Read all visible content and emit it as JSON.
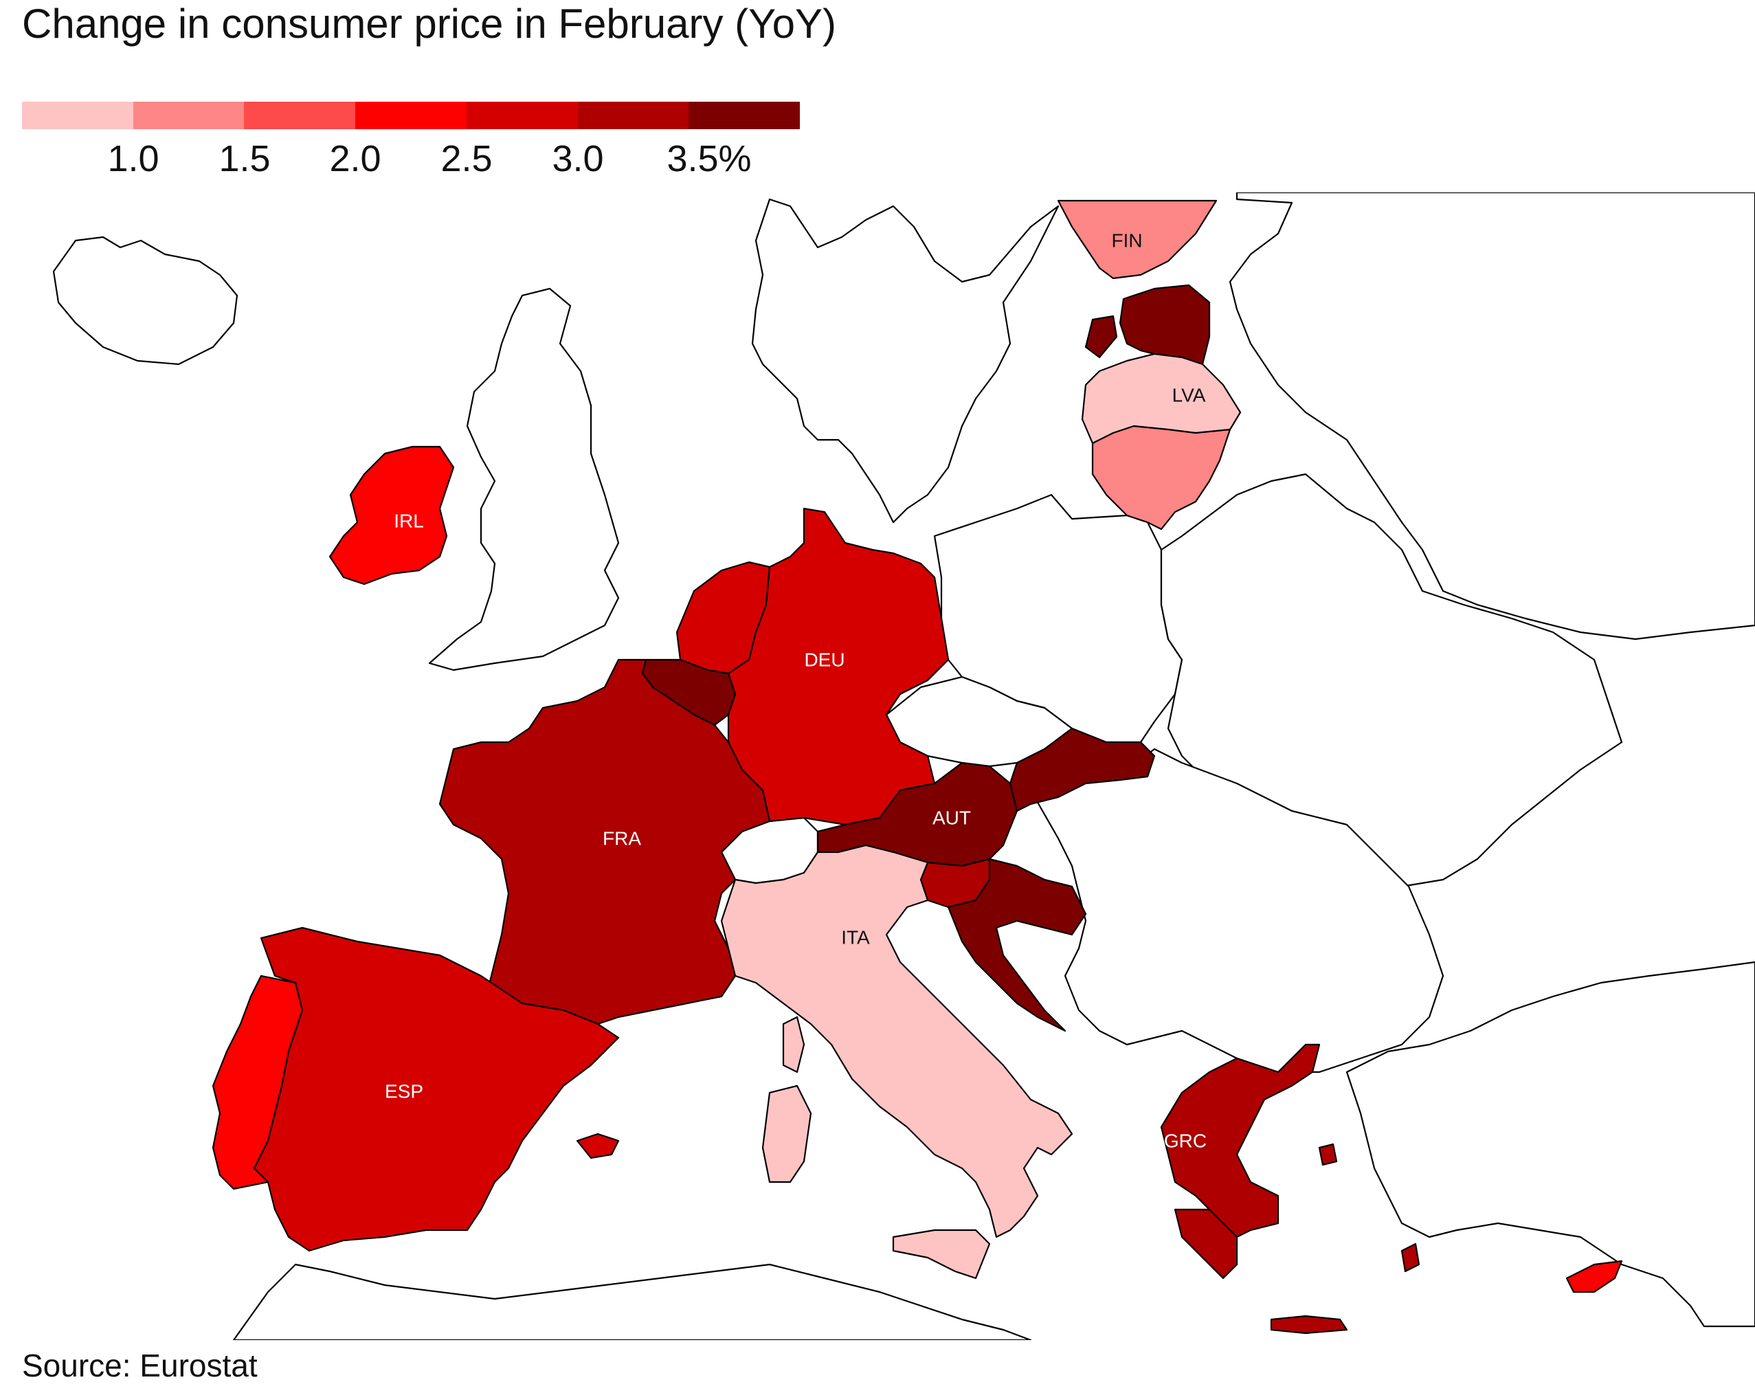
{
  "title": "Change in consumer price in February (YoY)",
  "legend": {
    "colors": [
      "#fec4c4",
      "#fd8686",
      "#fd4a4a",
      "#fd0000",
      "#d40000",
      "#ae0000",
      "#7d0000"
    ],
    "labels": [
      "1.0",
      "1.5",
      "2.0",
      "2.5",
      "3.0",
      "3.5%"
    ]
  },
  "countries": {
    "fin": {
      "label": "FIN",
      "bin": 1
    },
    "est": {
      "label": "",
      "bin": 6
    },
    "lva": {
      "label": "LVA",
      "bin": 0
    },
    "ltu": {
      "label": "",
      "bin": 1
    },
    "irl": {
      "label": "IRL",
      "bin": 3
    },
    "nld": {
      "label": "",
      "bin": 4
    },
    "bel": {
      "label": "",
      "bin": 6
    },
    "deu": {
      "label": "DEU",
      "bin": 4
    },
    "fra": {
      "label": "FRA",
      "bin": 5
    },
    "esp": {
      "label": "ESP",
      "bin": 4
    },
    "prt": {
      "label": "",
      "bin": 3
    },
    "aut": {
      "label": "AUT",
      "bin": 6
    },
    "svk": {
      "label": "",
      "bin": 6
    },
    "svn": {
      "label": "",
      "bin": 5
    },
    "hrv": {
      "label": "",
      "bin": 6
    },
    "ita": {
      "label": "ITA",
      "bin": 0
    },
    "grc": {
      "label": "GRC",
      "bin": 5
    },
    "cyp": {
      "label": "",
      "bin": 3
    }
  },
  "source": "Source: Eurostat"
}
